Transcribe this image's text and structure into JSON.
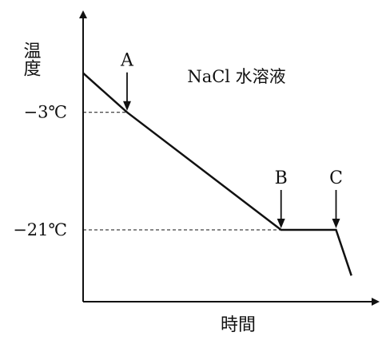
{
  "chart_data": {
    "type": "line",
    "ylabel": "温度",
    "xlabel": "時間",
    "annotation": "NaCl 水溶液",
    "y_tick_labels": [
      "−3℃",
      "−21℃"
    ],
    "y_ticks": [
      -3,
      -21
    ],
    "series": [
      {
        "x": [
          0,
          20,
          90,
          115,
          122
        ],
        "y": [
          3,
          -3,
          -21,
          -21,
          -28
        ]
      }
    ],
    "points": [
      {
        "label": "A",
        "x": 20,
        "y": -3
      },
      {
        "label": "B",
        "x": 90,
        "y": -21
      },
      {
        "label": "C",
        "x": 115,
        "y": -21
      }
    ],
    "xlim": [
      0,
      125
    ],
    "ylim": [
      -32,
      12
    ]
  }
}
